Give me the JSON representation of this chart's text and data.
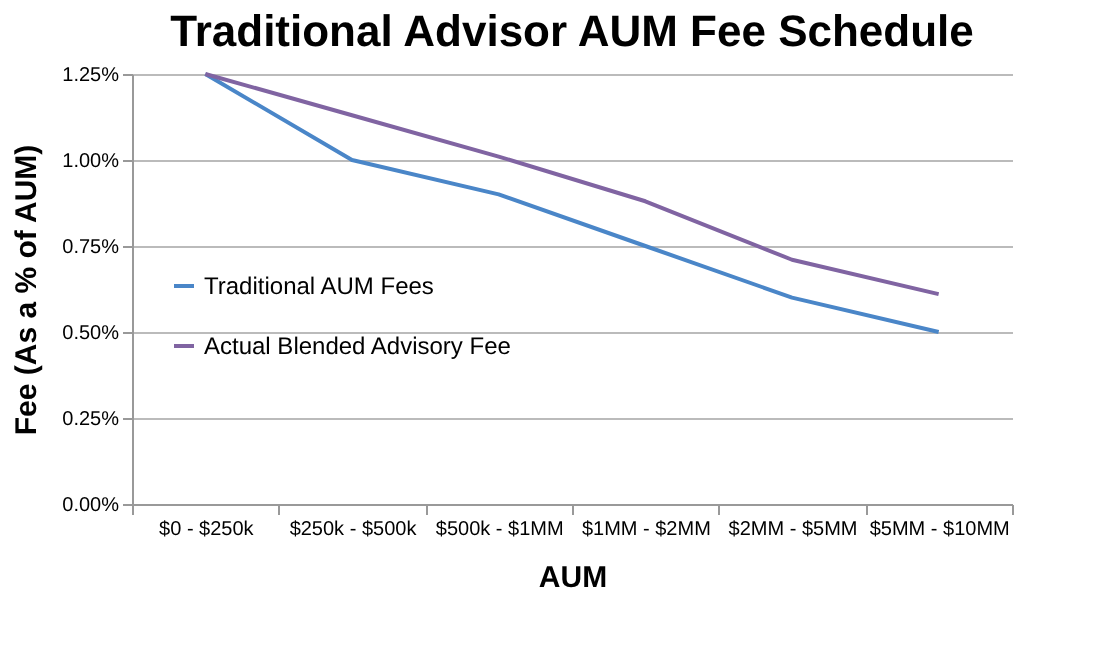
{
  "chart_data": {
    "type": "line",
    "title": "Traditional Advisor AUM Fee Schedule",
    "xlabel": "AUM",
    "ylabel": "Fee (As a % of AUM)",
    "categories": [
      "$0 - $250k",
      "$250k - $500k",
      "$500k - $1MM",
      "$1MM - $2MM",
      "$2MM - $5MM",
      "$5MM - $10MM"
    ],
    "series": [
      {
        "name": "Traditional AUM Fees",
        "color": "#4a86c8",
        "values": [
          1.25,
          1.0,
          0.9,
          0.75,
          0.6,
          0.5
        ]
      },
      {
        "name": "Actual Blended Advisory Fee",
        "color": "#8064a2",
        "values": [
          1.25,
          1.13,
          1.01,
          0.88,
          0.71,
          0.61
        ]
      }
    ],
    "ylim": [
      0,
      1.25
    ],
    "yticks": [
      {
        "value": 0,
        "label": "0.00%"
      },
      {
        "value": 0.25,
        "label": "0.25%"
      },
      {
        "value": 0.5,
        "label": "0.50%"
      },
      {
        "value": 0.75,
        "label": "0.75%"
      },
      {
        "value": 1.0,
        "label": "1.00%"
      },
      {
        "value": 1.25,
        "label": "1.25%"
      }
    ],
    "grid": "y",
    "legend": "left",
    "marker": "none",
    "line_style": "solid"
  }
}
